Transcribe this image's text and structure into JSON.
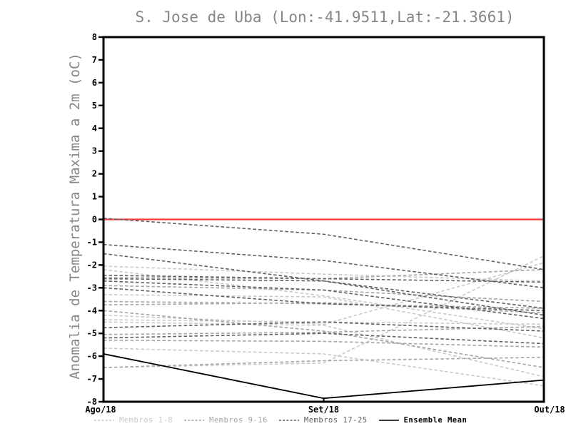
{
  "chart_data": {
    "type": "line",
    "title": "S. Jose de Uba (Lon:-41.9511,Lat:-21.3661)",
    "ylabel": "Anomalia de Temperatura Maxima a 2m (oC)",
    "xlabel": "",
    "x_categories": [
      "Ago/18",
      "Set/18",
      "Out/18"
    ],
    "ylim": [
      -8,
      8
    ],
    "ytick_step": 1,
    "grid": false,
    "background_color": "#ffffff",
    "axis_color": "#000000",
    "title_color": "#868686",
    "legend_position": "bottom",
    "zero_line": {
      "value": 0,
      "color": "#fa3c3c"
    },
    "groups": [
      {
        "name": "Membros 1-8",
        "color": "#c9c9c9",
        "style": "dashed",
        "members": [
          [
            -2.05,
            -2.4,
            -2.7
          ],
          [
            -2.2,
            -3.35,
            -4.8
          ],
          [
            -3.3,
            -3.4,
            -5.2
          ],
          [
            -4.2,
            -4.6,
            -1.9
          ],
          [
            -4.5,
            -4.65,
            -6.9
          ],
          [
            -5.65,
            -5.9,
            -7.3
          ],
          [
            -6.5,
            -6.3,
            -1.6
          ],
          [
            -4.4,
            -4.5,
            -4.6
          ]
        ]
      },
      {
        "name": "Membros 9-16",
        "color": "#a4a4a4",
        "style": "dashed",
        "members": [
          [
            -2.55,
            -2.6,
            -2.2
          ],
          [
            -2.9,
            -3.1,
            -3.6
          ],
          [
            -3.6,
            -3.7,
            -3.9
          ],
          [
            -3.75,
            -3.65,
            -4.1
          ],
          [
            -4.0,
            -4.9,
            -6.5
          ],
          [
            -5.05,
            -4.95,
            -4.7
          ],
          [
            -5.3,
            -5.35,
            -5.6
          ],
          [
            -6.5,
            -6.2,
            -6.05
          ]
        ]
      },
      {
        "name": "Membros 17-25",
        "color": "#5f5f5f",
        "style": "dashed",
        "members": [
          [
            0.05,
            -0.65,
            -2.2
          ],
          [
            -1.1,
            -1.8,
            -3.0
          ],
          [
            -1.5,
            -2.7,
            -3.9
          ],
          [
            -2.45,
            -2.6,
            -2.75
          ],
          [
            -2.6,
            -2.7,
            -4.2
          ],
          [
            -2.7,
            -3.1,
            -4.35
          ],
          [
            -3.0,
            -3.7,
            -4.0
          ],
          [
            -4.75,
            -4.5,
            -4.9
          ],
          [
            -5.2,
            -5.0,
            -5.45
          ]
        ]
      }
    ],
    "mean": {
      "name": "Ensemble Mean",
      "color": "#000000",
      "style": "solid",
      "values": [
        -5.9,
        -7.85,
        -7.05
      ]
    }
  }
}
